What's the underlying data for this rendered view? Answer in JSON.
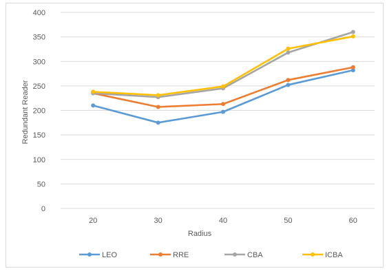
{
  "chart_data": {
    "type": "line",
    "title": "",
    "xlabel": "Radius",
    "ylabel": "Redundant Reader",
    "categories": [
      "20",
      "30",
      "40",
      "50",
      "60"
    ],
    "y_ticks": [
      "0",
      "50",
      "100",
      "150",
      "200",
      "250",
      "300",
      "350",
      "400"
    ],
    "ylim": [
      0,
      400
    ],
    "grid": true,
    "legend_position": "bottom",
    "series": [
      {
        "name": "LEO",
        "color": "#5b9bd5",
        "values": [
          210,
          175,
          197,
          252,
          282
        ]
      },
      {
        "name": "RRE",
        "color": "#ed7d31",
        "values": [
          235,
          207,
          213,
          262,
          288
        ]
      },
      {
        "name": "CBA",
        "color": "#a5a5a5",
        "values": [
          235,
          227,
          245,
          318,
          360
        ]
      },
      {
        "name": "ICBA",
        "color": "#ffc000",
        "values": [
          238,
          231,
          249,
          326,
          351
        ]
      }
    ]
  }
}
